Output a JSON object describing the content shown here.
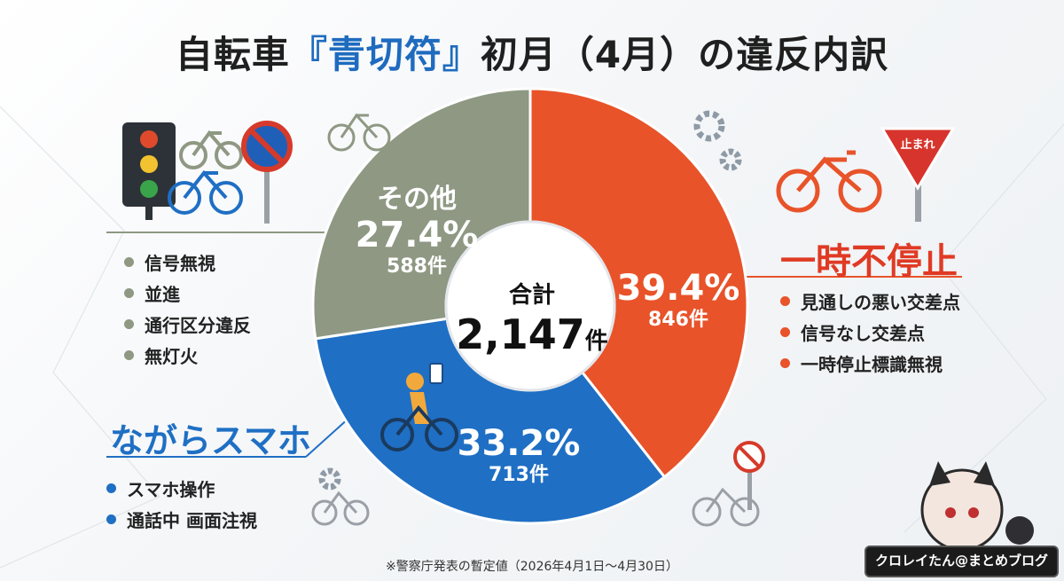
{
  "title": {
    "prefix": "自転車",
    "open_bracket": "『",
    "highlight": "青切符",
    "close_bracket": "』",
    "suffix": "初月（4月）の違反内訳"
  },
  "chart_data": {
    "type": "pie",
    "donut": true,
    "total_label": "合計",
    "total_value": "2,147",
    "total_unit": "件",
    "slices": [
      {
        "name": "一時不停止",
        "percent": 39.4,
        "percent_label": "39.4%",
        "count_label": "846件",
        "value": 846,
        "color": "#e8532a"
      },
      {
        "name": "ながらスマホ",
        "percent": 33.2,
        "percent_label": "33.2%",
        "count_label": "713件",
        "value": 713,
        "color": "#1f6fc4"
      },
      {
        "name": "その他",
        "percent": 27.4,
        "percent_label": "27.4%",
        "count_label": "588件",
        "value": 588,
        "color": "#8e9883"
      }
    ]
  },
  "groups": {
    "stop": {
      "title": "一時不停止",
      "color": "#e8532a",
      "items": [
        "見通しの悪い交差点",
        "信号なし交差点",
        "一時停止標識無視"
      ]
    },
    "phone": {
      "title": "ながらスマホ",
      "color": "#1f6fc4",
      "items": [
        "スマホ操作",
        "通話中 画面注視"
      ]
    },
    "other": {
      "color": "#8e9883",
      "items": [
        "信号無視",
        "並進",
        "通行区分違反",
        "無灯火"
      ]
    }
  },
  "sign": {
    "text": "止まれ"
  },
  "footnote": "※警察庁発表の暫定値（2026年4月1日〜4月30日）",
  "brand": {
    "text": "クロレイたん@まとめブログ"
  }
}
